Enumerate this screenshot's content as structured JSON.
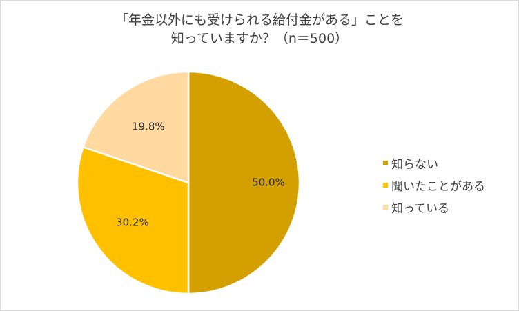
{
  "chart_data": {
    "type": "pie",
    "title": "「年金以外にも受けられる給付金がある」ことを知っていますか？（n＝500）",
    "title_lines": [
      "「年金以外にも受けられる給付金がある」ことを",
      "知っていますか？（n＝500）"
    ],
    "categories": [
      "知らない",
      "聞いたことがある",
      "知っている"
    ],
    "values": [
      50.0,
      30.2,
      19.8
    ],
    "labels": [
      "50.0%",
      "30.2%",
      "19.8%"
    ],
    "colors": [
      "#D4A000",
      "#FFC000",
      "#FFD9A0"
    ],
    "unit": "%",
    "start_angle_deg": 0,
    "direction": "clockwise",
    "legend_position": "right",
    "sample_size": 500
  },
  "legend": {
    "items": [
      {
        "label": "知らない",
        "color": "#D4A000"
      },
      {
        "label": "聞いたことがある",
        "color": "#FFC000"
      },
      {
        "label": "知っている",
        "color": "#FFD9A0"
      }
    ]
  },
  "style": {
    "border_color": "#D9D9D9",
    "text_color": "#404040",
    "slice_separator": "#FFFFFF"
  }
}
